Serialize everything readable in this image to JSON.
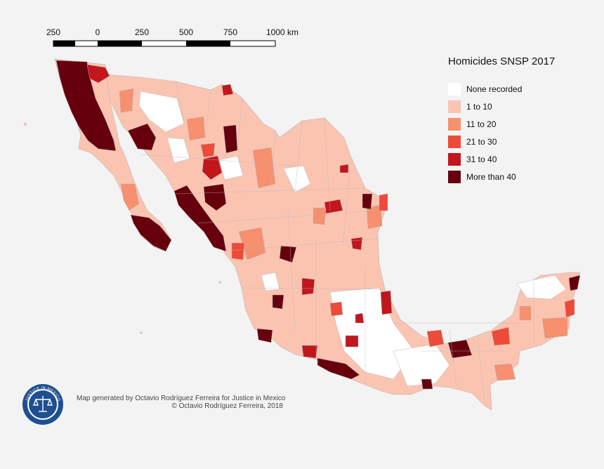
{
  "scale_bar": {
    "labels": [
      "250",
      "0",
      "250",
      "500",
      "750",
      "1000 km"
    ]
  },
  "legend": {
    "title": "Homicides SNSP 2017",
    "items": [
      {
        "label": "None recorded",
        "color": "#ffffff"
      },
      {
        "label": "1 to 10",
        "color": "#fbc4b1"
      },
      {
        "label": "11 to 20",
        "color": "#f6906f"
      },
      {
        "label": "21 to 30",
        "color": "#ee4a39"
      },
      {
        "label": "31 to 40",
        "color": "#c2161d"
      },
      {
        "label": "More than 40",
        "color": "#67000d"
      }
    ]
  },
  "credit": {
    "line1": "Map generated by Octavio Rodríguez Ferreira for Justice in Mexico",
    "line2": "© Octavio Rodríguez Ferreira, 2018"
  },
  "logo": {
    "text": "JUSTICE IN MEXICO",
    "icon": "scales-of-justice-icon",
    "ring_color": "#1d4f91"
  },
  "colors": {
    "background": "#f4f3f3",
    "border": "#b8b8b8"
  }
}
